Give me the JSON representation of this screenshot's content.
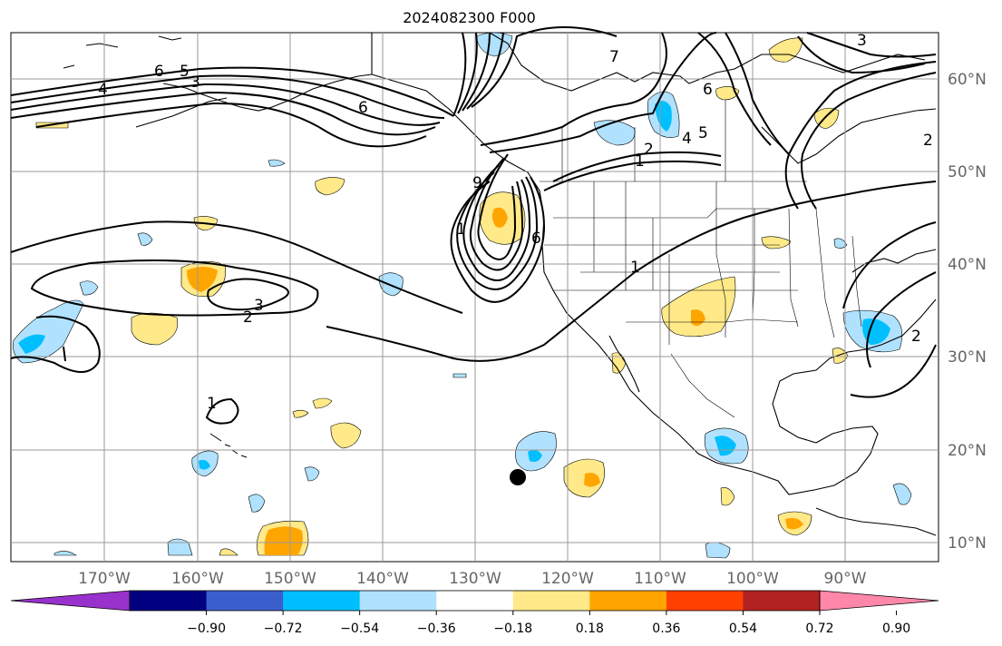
{
  "title": "2024082300 F000",
  "lon_labels": [
    "170°W",
    "160°W",
    "150°W",
    "140°W",
    "130°W",
    "120°W",
    "110°W",
    "100°W",
    "90°W"
  ],
  "lat_labels": [
    "60°N",
    "50°N",
    "40°N",
    "30°N",
    "20°N",
    "10°N"
  ],
  "colorbar": {
    "ticks": [
      "−0.90",
      "−0.72",
      "−0.54",
      "−0.36",
      "−0.18",
      "0.18",
      "0.36",
      "0.54",
      "0.72",
      "0.90"
    ],
    "colors": [
      "#9932CC",
      "#000080",
      "#3A5FCD",
      "#00BFFF",
      "#B0E2FF",
      "#FFFFFF",
      "#FFE989",
      "#FFA500",
      "#FF4000",
      "#B22222",
      "#FF88AA"
    ]
  },
  "contour_labels": [
    "6",
    "5",
    "3",
    "4",
    "6",
    "7",
    "6",
    "9",
    "6",
    "5",
    "4",
    "2",
    "1",
    "1",
    "3",
    "2",
    "1",
    "1",
    "2",
    "3",
    "2"
  ],
  "marker": "station-dot"
}
